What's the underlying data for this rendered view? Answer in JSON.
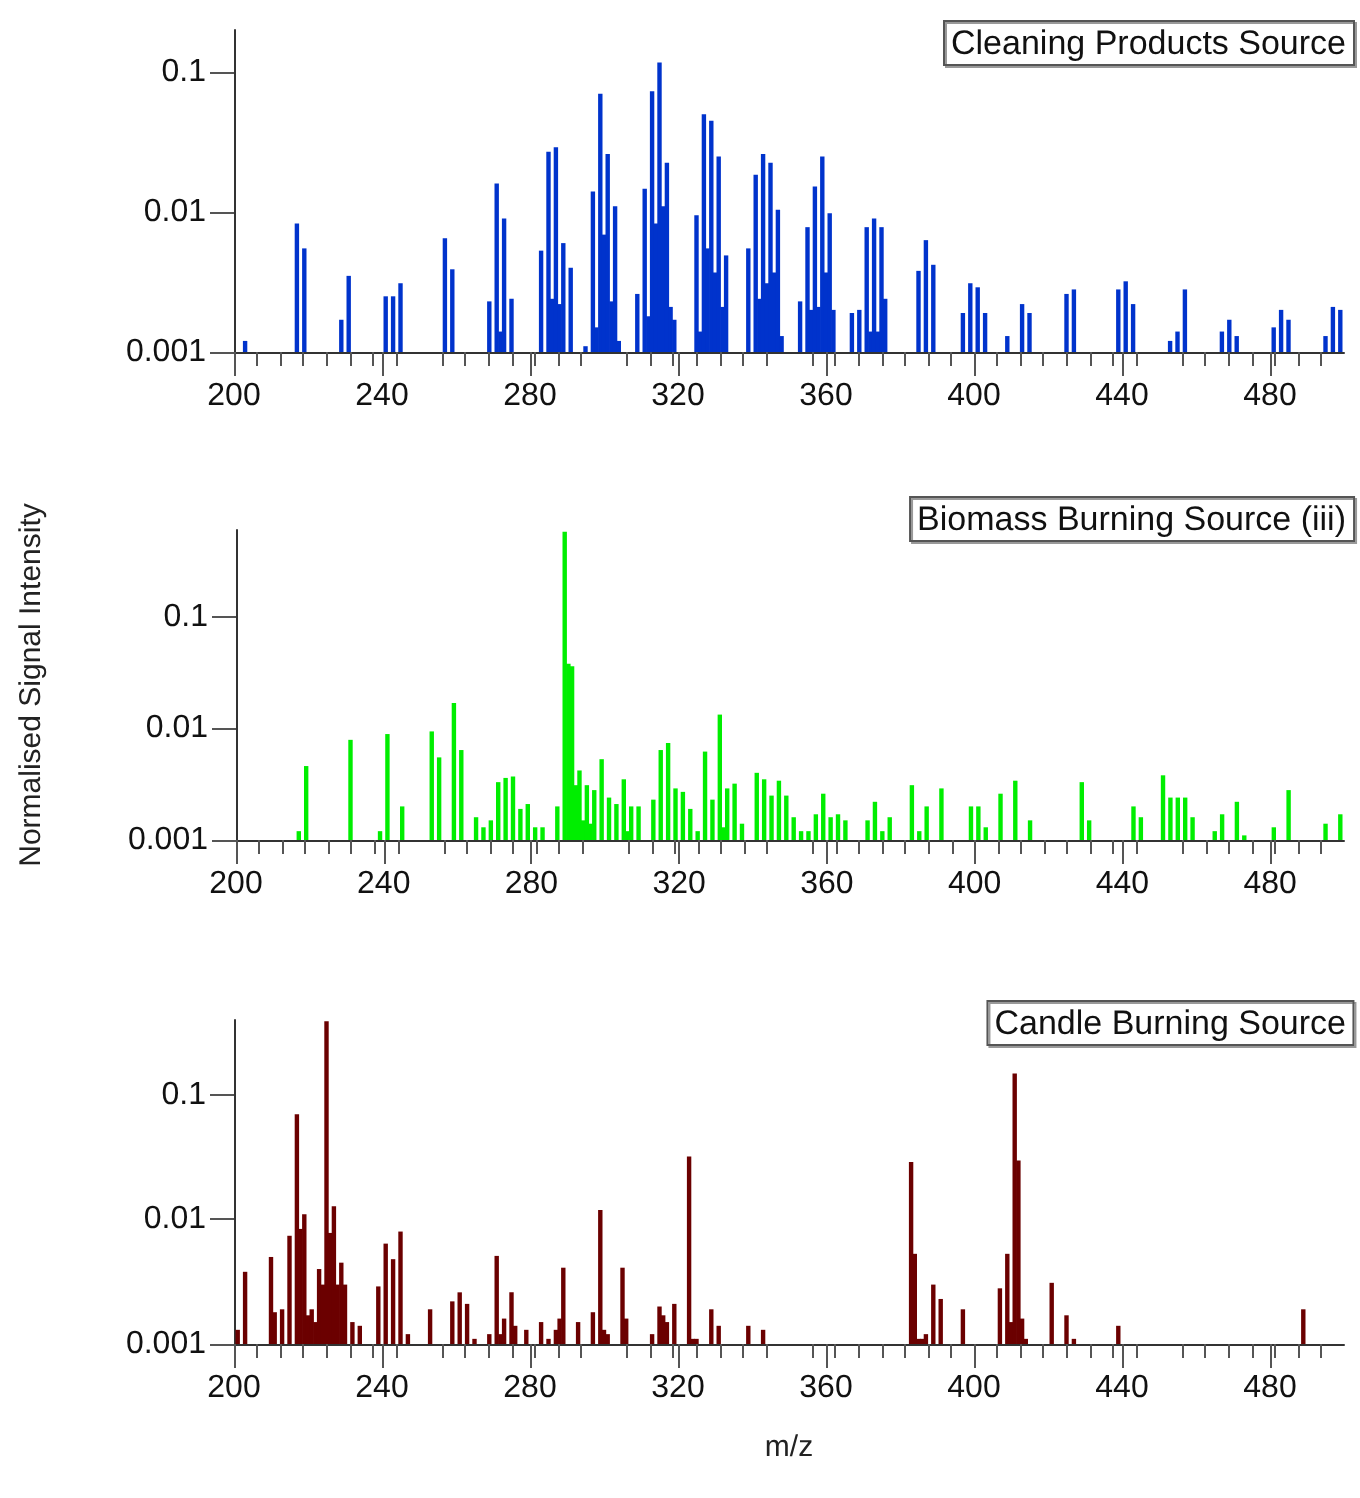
{
  "chart_data": [
    {
      "type": "bar",
      "title": "Cleaning Products Source",
      "color": "#0033cc",
      "log": true,
      "xlim": [
        200,
        500
      ],
      "xticks": [
        200,
        240,
        280,
        320,
        360,
        400,
        440,
        480
      ],
      "ylim": [
        0.001,
        0.2
      ],
      "yticks": [
        0.001,
        0.01,
        0.1
      ],
      "x": [
        203,
        217,
        219,
        229,
        231,
        241,
        243,
        245,
        257,
        259,
        269,
        271,
        272,
        273,
        275,
        283,
        285,
        286,
        287,
        288,
        289,
        291,
        295,
        297,
        298,
        299,
        300,
        301,
        302,
        303,
        304,
        309,
        311,
        312,
        313,
        314,
        315,
        316,
        317,
        318,
        319,
        325,
        326,
        327,
        328,
        329,
        330,
        331,
        332,
        333,
        339,
        341,
        342,
        343,
        344,
        345,
        346,
        347,
        348,
        353,
        355,
        356,
        357,
        358,
        359,
        360,
        361,
        362,
        367,
        369,
        371,
        372,
        373,
        374,
        375,
        376,
        385,
        387,
        389,
        397,
        399,
        401,
        403,
        409,
        413,
        415,
        425,
        427,
        439,
        441,
        443,
        453,
        455,
        457,
        467,
        469,
        471,
        481,
        483,
        485,
        495,
        497,
        499
      ],
      "values": [
        0.0012,
        0.0083,
        0.0055,
        0.0017,
        0.0035,
        0.0025,
        0.0025,
        0.0031,
        0.0065,
        0.0039,
        0.0023,
        0.016,
        0.0014,
        0.009,
        0.0024,
        0.0053,
        0.027,
        0.0024,
        0.029,
        0.0022,
        0.006,
        0.004,
        0.0011,
        0.014,
        0.0015,
        0.07,
        0.0069,
        0.026,
        0.0023,
        0.011,
        0.0012,
        0.0026,
        0.0147,
        0.0018,
        0.073,
        0.0083,
        0.117,
        0.011,
        0.0225,
        0.0021,
        0.0017,
        0.0095,
        0.0014,
        0.05,
        0.0055,
        0.045,
        0.0037,
        0.025,
        0.0021,
        0.0049,
        0.0055,
        0.0185,
        0.0024,
        0.026,
        0.0031,
        0.0225,
        0.0037,
        0.0104,
        0.0013,
        0.0023,
        0.0078,
        0.002,
        0.0152,
        0.0021,
        0.025,
        0.0037,
        0.0098,
        0.002,
        0.0019,
        0.002,
        0.0078,
        0.0014,
        0.009,
        0.0014,
        0.0078,
        0.0024,
        0.0038,
        0.0063,
        0.0042,
        0.0019,
        0.0031,
        0.0029,
        0.0019,
        0.0013,
        0.0022,
        0.0019,
        0.0026,
        0.0028,
        0.0028,
        0.0032,
        0.0022,
        0.0012,
        0.0014,
        0.0028,
        0.0014,
        0.0017,
        0.0013,
        0.0015,
        0.002,
        0.0017,
        0.0013,
        0.0021,
        0.002
      ]
    },
    {
      "type": "bar",
      "title": "Biomass Burning Source (iii)",
      "ylabel": "Normalised Signal Intensity",
      "color": "#00ee00",
      "log": true,
      "xlim": [
        200,
        500
      ],
      "xticks": [
        200,
        240,
        280,
        320,
        360,
        400,
        440,
        480
      ],
      "ylim": [
        0.001,
        0.6
      ],
      "yticks": [
        0.001,
        0.01,
        0.1
      ],
      "x": [
        217,
        219,
        231,
        239,
        241,
        245,
        253,
        255,
        259,
        261,
        265,
        267,
        269,
        271,
        273,
        275,
        277,
        279,
        281,
        283,
        287,
        289,
        290,
        291,
        292,
        293,
        294,
        295,
        296,
        297,
        299,
        301,
        303,
        305,
        306,
        307,
        309,
        313,
        315,
        317,
        319,
        321,
        323,
        325,
        327,
        329,
        331,
        332,
        333,
        335,
        337,
        341,
        343,
        345,
        347,
        349,
        351,
        353,
        355,
        357,
        359,
        361,
        363,
        365,
        371,
        373,
        375,
        377,
        383,
        385,
        387,
        391,
        399,
        401,
        403,
        407,
        411,
        415,
        429,
        431,
        443,
        445,
        451,
        453,
        455,
        457,
        459,
        465,
        467,
        471,
        473,
        481,
        485,
        495,
        499
      ],
      "values": [
        0.0012,
        0.0046,
        0.0079,
        0.0012,
        0.0089,
        0.002,
        0.0094,
        0.0055,
        0.0169,
        0.0064,
        0.0016,
        0.0013,
        0.0015,
        0.0033,
        0.0036,
        0.0037,
        0.0019,
        0.0021,
        0.0013,
        0.0013,
        0.002,
        0.58,
        0.038,
        0.036,
        0.0031,
        0.0042,
        0.0015,
        0.0031,
        0.0014,
        0.0028,
        0.0053,
        0.0024,
        0.0021,
        0.0035,
        0.0012,
        0.002,
        0.002,
        0.0023,
        0.0064,
        0.0074,
        0.0029,
        0.0027,
        0.0019,
        0.0012,
        0.0062,
        0.0023,
        0.0133,
        0.0013,
        0.0029,
        0.0032,
        0.0014,
        0.004,
        0.0035,
        0.0025,
        0.0034,
        0.0025,
        0.0016,
        0.0012,
        0.0012,
        0.0017,
        0.0026,
        0.0016,
        0.0017,
        0.0015,
        0.0015,
        0.0022,
        0.0012,
        0.0016,
        0.0031,
        0.0012,
        0.002,
        0.0029,
        0.002,
        0.002,
        0.0013,
        0.0026,
        0.0034,
        0.0015,
        0.0033,
        0.0015,
        0.002,
        0.0016,
        0.0038,
        0.0024,
        0.0024,
        0.0024,
        0.0016,
        0.0012,
        0.0017,
        0.0022,
        0.0011,
        0.0013,
        0.0028,
        0.0014,
        0.0017
      ]
    },
    {
      "type": "bar",
      "title": "Candle Burning Source",
      "xlabel": "m/z",
      "color": "#6b0000",
      "log": true,
      "xlim": [
        200,
        500
      ],
      "xticks": [
        200,
        240,
        280,
        320,
        360,
        400,
        440,
        480
      ],
      "ylim": [
        0.001,
        0.4
      ],
      "yticks": [
        0.001,
        0.01,
        0.1
      ],
      "x": [
        201,
        203,
        210,
        211,
        213,
        215,
        217,
        218,
        219,
        220,
        221,
        222,
        223,
        224,
        225,
        226,
        227,
        228,
        229,
        230,
        232,
        234,
        239,
        241,
        243,
        245,
        247,
        253,
        259,
        261,
        263,
        265,
        269,
        271,
        272,
        273,
        275,
        276,
        279,
        283,
        285,
        287,
        288,
        289,
        293,
        297,
        299,
        300,
        301,
        305,
        306,
        313,
        315,
        316,
        317,
        319,
        323,
        324,
        325,
        329,
        331,
        339,
        343,
        383,
        384,
        385,
        386,
        387,
        389,
        391,
        397,
        407,
        409,
        410,
        411,
        412,
        413,
        414,
        421,
        425,
        427,
        439,
        489
      ],
      "values": [
        0.0013,
        0.0038,
        0.005,
        0.0018,
        0.0019,
        0.0074,
        0.07,
        0.0084,
        0.011,
        0.0017,
        0.0019,
        0.0015,
        0.004,
        0.003,
        0.39,
        0.0078,
        0.0128,
        0.003,
        0.0045,
        0.003,
        0.0015,
        0.0014,
        0.0029,
        0.0064,
        0.0048,
        0.008,
        0.0012,
        0.0019,
        0.0022,
        0.0026,
        0.0021,
        0.0011,
        0.0012,
        0.0051,
        0.0012,
        0.0016,
        0.0026,
        0.0014,
        0.0013,
        0.0015,
        0.0011,
        0.0013,
        0.0016,
        0.0041,
        0.0015,
        0.0018,
        0.0119,
        0.0013,
        0.0012,
        0.0041,
        0.0016,
        0.0012,
        0.002,
        0.0017,
        0.0015,
        0.0021,
        0.032,
        0.0011,
        0.0011,
        0.0019,
        0.0014,
        0.0014,
        0.0013,
        0.029,
        0.0053,
        0.0011,
        0.0011,
        0.0012,
        0.003,
        0.0023,
        0.0019,
        0.0028,
        0.0053,
        0.0015,
        0.149,
        0.0297,
        0.0016,
        0.0011,
        0.0031,
        0.0017,
        0.0011,
        0.0014,
        0.0019
      ]
    }
  ]
}
